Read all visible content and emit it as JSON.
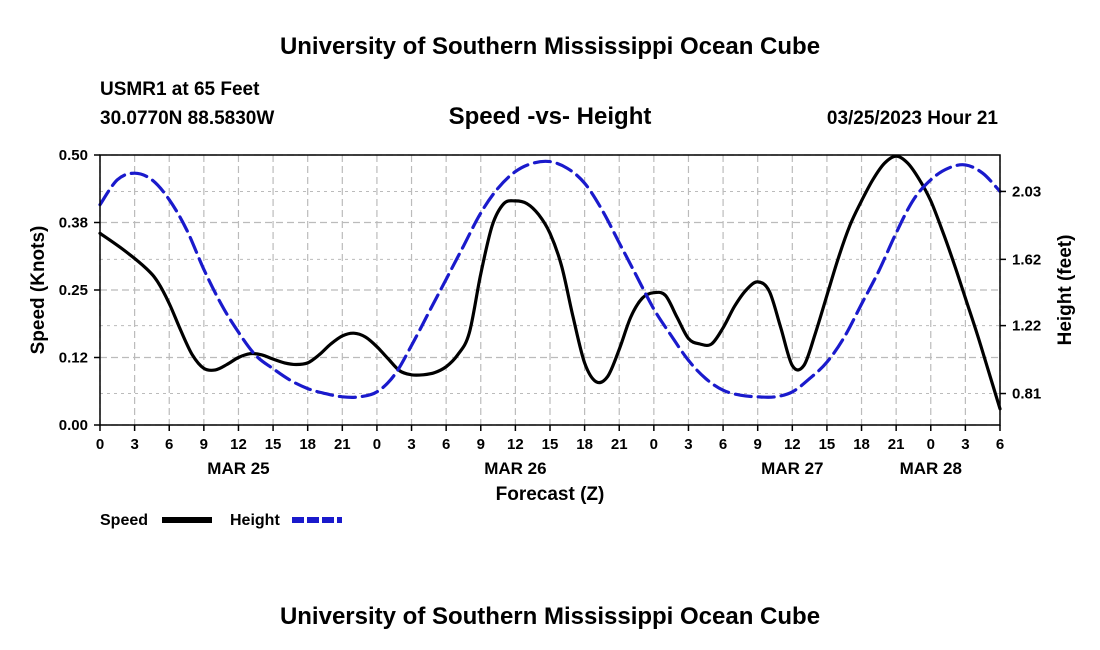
{
  "header": {
    "title_top": "University of Southern Mississippi Ocean Cube",
    "station": "USMR1 at 65 Feet",
    "coords": "30.0770N  88.5830W",
    "datetime": "03/25/2023 Hour 21",
    "title_bottom": "University of Southern Mississippi Ocean Cube"
  },
  "colors": {
    "speed": "#000000",
    "height": "#1a1acc",
    "grid": "#bbbbbb"
  },
  "chart_data": {
    "type": "line",
    "title": "Speed -vs- Height",
    "xlabel": "Forecast (Z)",
    "ylabel": "Speed (Knots)",
    "ylabel_right": "Height (feet)",
    "x_unit": "hours from MAR 25 00Z",
    "xlim": [
      0,
      78
    ],
    "ylim": [
      0,
      0.5
    ],
    "ylim_right": [
      0.62,
      2.25
    ],
    "x_ticks": [
      {
        "x": 0,
        "label": "0"
      },
      {
        "x": 3,
        "label": "3"
      },
      {
        "x": 6,
        "label": "6"
      },
      {
        "x": 9,
        "label": "9"
      },
      {
        "x": 12,
        "label": "12"
      },
      {
        "x": 15,
        "label": "15"
      },
      {
        "x": 18,
        "label": "18"
      },
      {
        "x": 21,
        "label": "21"
      },
      {
        "x": 24,
        "label": "0"
      },
      {
        "x": 27,
        "label": "3"
      },
      {
        "x": 30,
        "label": "6"
      },
      {
        "x": 33,
        "label": "9"
      },
      {
        "x": 36,
        "label": "12"
      },
      {
        "x": 39,
        "label": "15"
      },
      {
        "x": 42,
        "label": "18"
      },
      {
        "x": 45,
        "label": "21"
      },
      {
        "x": 48,
        "label": "0"
      },
      {
        "x": 51,
        "label": "3"
      },
      {
        "x": 54,
        "label": "6"
      },
      {
        "x": 57,
        "label": "9"
      },
      {
        "x": 60,
        "label": "12"
      },
      {
        "x": 63,
        "label": "15"
      },
      {
        "x": 66,
        "label": "18"
      },
      {
        "x": 69,
        "label": "21"
      },
      {
        "x": 72,
        "label": "0"
      },
      {
        "x": 75,
        "label": "3"
      },
      {
        "x": 78,
        "label": "6"
      }
    ],
    "date_labels": [
      {
        "x": 12,
        "label": "MAR 25"
      },
      {
        "x": 36,
        "label": "MAR 26"
      },
      {
        "x": 60,
        "label": "MAR 27"
      },
      {
        "x": 72,
        "label": "MAR 28"
      }
    ],
    "y_ticks": [
      {
        "y": 0,
        "label": "0.00"
      },
      {
        "y": 0.125,
        "label": "0.12"
      },
      {
        "y": 0.25,
        "label": "0.25"
      },
      {
        "y": 0.375,
        "label": "0.38"
      },
      {
        "y": 0.5,
        "label": "0.50"
      }
    ],
    "y_ticks_right": [
      {
        "y": 0.81,
        "label": "0.81"
      },
      {
        "y": 1.22,
        "label": "1.22"
      },
      {
        "y": 1.62,
        "label": "1.62"
      },
      {
        "y": 2.03,
        "label": "2.03"
      }
    ],
    "series": [
      {
        "name": "Speed",
        "axis": "left",
        "style": "solid",
        "x": [
          0,
          2,
          4,
          5,
          6,
          7,
          8,
          9,
          10,
          11,
          12,
          13,
          14,
          15,
          16,
          17,
          18,
          19,
          20,
          21,
          22,
          23,
          24,
          25,
          26,
          27,
          28,
          29,
          30,
          31,
          32,
          33,
          34,
          35,
          36,
          37,
          38,
          39,
          40,
          41,
          42,
          43,
          44,
          45,
          46,
          47,
          48,
          49,
          50,
          51,
          52,
          53,
          54,
          55,
          56,
          57,
          58,
          59,
          60,
          61,
          62,
          63,
          64,
          65,
          66,
          67,
          68,
          69,
          70,
          71,
          72,
          73,
          74,
          75,
          76,
          77,
          78
        ],
        "values": [
          0.355,
          0.325,
          0.29,
          0.265,
          0.225,
          0.175,
          0.13,
          0.105,
          0.102,
          0.112,
          0.125,
          0.132,
          0.13,
          0.122,
          0.115,
          0.112,
          0.115,
          0.13,
          0.15,
          0.165,
          0.17,
          0.163,
          0.145,
          0.122,
          0.1,
          0.093,
          0.093,
          0.097,
          0.108,
          0.13,
          0.17,
          0.28,
          0.37,
          0.41,
          0.415,
          0.41,
          0.39,
          0.355,
          0.295,
          0.2,
          0.115,
          0.08,
          0.09,
          0.14,
          0.2,
          0.235,
          0.245,
          0.24,
          0.2,
          0.16,
          0.15,
          0.15,
          0.18,
          0.22,
          0.25,
          0.265,
          0.248,
          0.18,
          0.11,
          0.11,
          0.17,
          0.24,
          0.31,
          0.37,
          0.415,
          0.455,
          0.485,
          0.498,
          0.485,
          0.455,
          0.415,
          0.36,
          0.3,
          0.235,
          0.17,
          0.1,
          0.03
        ]
      },
      {
        "name": "Height",
        "axis": "right",
        "style": "dashed",
        "x": [
          0,
          1.5,
          3,
          4.5,
          6,
          7.5,
          9,
          10.5,
          12,
          13.5,
          15,
          16.5,
          18,
          19.5,
          21,
          22.5,
          24,
          25.5,
          27,
          28.5,
          30,
          31.5,
          33,
          34.5,
          36,
          37.5,
          39,
          40.5,
          42,
          43.5,
          45,
          46.5,
          48,
          49.5,
          51,
          52.5,
          54,
          55.5,
          57,
          58.5,
          60,
          61.5,
          63,
          64.5,
          66,
          67.5,
          69,
          70.5,
          72,
          73.5,
          75,
          76.5,
          78
        ],
        "values": [
          1.95,
          2.1,
          2.14,
          2.1,
          1.98,
          1.8,
          1.56,
          1.35,
          1.18,
          1.04,
          0.96,
          0.89,
          0.84,
          0.81,
          0.79,
          0.79,
          0.82,
          0.92,
          1.1,
          1.3,
          1.5,
          1.7,
          1.9,
          2.05,
          2.15,
          2.2,
          2.21,
          2.17,
          2.08,
          1.92,
          1.72,
          1.52,
          1.32,
          1.16,
          1.01,
          0.9,
          0.83,
          0.8,
          0.79,
          0.79,
          0.82,
          0.9,
          1.0,
          1.15,
          1.35,
          1.55,
          1.78,
          1.98,
          2.1,
          2.17,
          2.19,
          2.14,
          2.03
        ]
      }
    ],
    "legend": [
      {
        "label": "Speed"
      },
      {
        "label": "Height"
      }
    ],
    "legend_position": "bottom-left"
  }
}
